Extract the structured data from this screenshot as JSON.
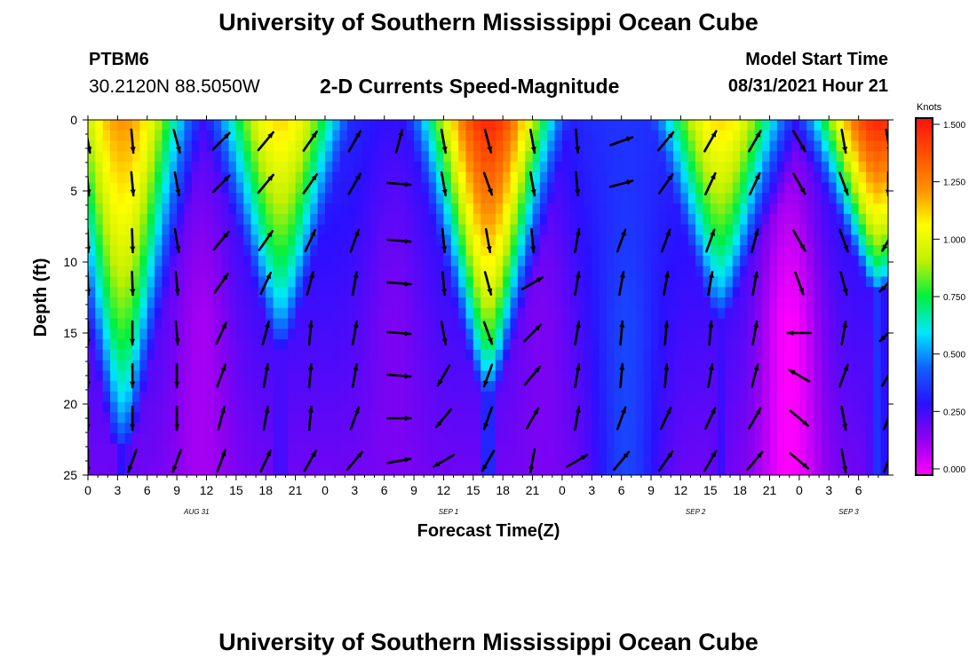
{
  "header": {
    "title": "University of Southern Mississippi Ocean Cube",
    "footer_title": "University of Southern Mississippi Ocean Cube",
    "station_id": "PTBM6",
    "station_coords": "30.2120N  88.5050W",
    "model_start_label": "Model Start Time",
    "model_start_value": "08/31/2021 Hour 21"
  },
  "chart_data": {
    "type": "heatmap",
    "title": "2-D Currents Speed-Magnitude",
    "xlabel": "Forecast Time(Z)",
    "ylabel": "Depth (ft)",
    "x_hours_range": [
      0,
      81
    ],
    "x_tick_labels": [
      "0",
      "3",
      "6",
      "9",
      "12",
      "15",
      "18",
      "21",
      "0",
      "3",
      "6",
      "9",
      "12",
      "15",
      "18",
      "21",
      "0",
      "3",
      "6",
      "9",
      "12",
      "15",
      "18",
      "21",
      "0",
      "3",
      "6"
    ],
    "date_labels": [
      {
        "label": "AUG 31",
        "hour": 11
      },
      {
        "label": "SEP 1",
        "hour": 36.5
      },
      {
        "label": "SEP 2",
        "hour": 61.5
      },
      {
        "label": "SEP 3",
        "hour": 77
      }
    ],
    "y_range_ft": [
      0,
      25
    ],
    "y_ticks": [
      0,
      5,
      10,
      15,
      20,
      25
    ],
    "colorbar": {
      "title": "Knots",
      "range": [
        0,
        1.5
      ],
      "tick_labels": [
        "1.500",
        "1.250",
        "1.000",
        "0.750",
        "0.500",
        "0.250",
        "0.000"
      ],
      "colors": [
        "#ff00ff",
        "#9000f0",
        "#2a10ff",
        "#1060ff",
        "#00e8ff",
        "#00f040",
        "#c0f000",
        "#ffff00",
        "#ff9000",
        "#ff5000",
        "#ff1010"
      ]
    },
    "speed_peaks_knots": [
      {
        "center_hour": 3.5,
        "peak": 1.2,
        "max_depth_ft": 23
      },
      {
        "center_hour": 19.5,
        "peak": 1.1,
        "max_depth_ft": 16
      },
      {
        "center_hour": 40.5,
        "peak": 1.45,
        "max_depth_ft": 19
      },
      {
        "center_hour": 64,
        "peak": 1.1,
        "max_depth_ft": 14
      },
      {
        "center_hour": 80,
        "peak": 1.45,
        "max_depth_ft": 12
      }
    ],
    "speed_lows_knots": [
      {
        "center_hour": 11.5,
        "min": 0.12
      },
      {
        "center_hour": 31,
        "min": 0.18
      },
      {
        "center_hour": 46,
        "min": 0.18
      },
      {
        "center_hour": 54.5,
        "min": 0.4
      },
      {
        "center_hour": 71,
        "min": 0.0
      }
    ],
    "vector_hours": [
      0,
      4.5,
      9,
      13.5,
      18,
      22.5,
      27,
      31.5,
      36,
      40.5,
      45,
      49.5,
      54,
      58.5,
      63,
      67.5,
      72,
      76.5,
      81
    ],
    "vector_depths_ft": [
      1.5,
      4.5,
      8.5,
      11.5,
      15,
      18,
      21,
      24
    ],
    "vector_direction_deg": [
      [
        170,
        175,
        165,
        45,
        40,
        35,
        30,
        15,
        170,
        165,
        170,
        175,
        70,
        40,
        30,
        30,
        150,
        170,
        170
      ],
      [
        175,
        175,
        170,
        45,
        40,
        35,
        30,
        95,
        170,
        160,
        170,
        175,
        75,
        35,
        25,
        25,
        150,
        160,
        180
      ],
      [
        178,
        178,
        170,
        40,
        35,
        25,
        20,
        95,
        175,
        170,
        175,
        10,
        20,
        20,
        20,
        15,
        150,
        160,
        210
      ],
      [
        178,
        178,
        175,
        35,
        25,
        15,
        10,
        95,
        175,
        165,
        60,
        10,
        10,
        10,
        10,
        10,
        160,
        165,
        225
      ],
      [
        180,
        180,
        175,
        25,
        15,
        5,
        10,
        95,
        170,
        160,
        45,
        10,
        5,
        5,
        5,
        10,
        270,
        10,
        225
      ],
      [
        180,
        180,
        180,
        20,
        10,
        5,
        10,
        95,
        210,
        200,
        40,
        10,
        5,
        5,
        10,
        15,
        300,
        20,
        30
      ],
      [
        180,
        180,
        180,
        15,
        10,
        5,
        20,
        90,
        220,
        200,
        30,
        10,
        20,
        25,
        25,
        30,
        130,
        170,
        20
      ],
      [
        180,
        200,
        200,
        20,
        25,
        30,
        40,
        80,
        240,
        210,
        190,
        60,
        40,
        35,
        30,
        40,
        130,
        170,
        20
      ]
    ]
  }
}
